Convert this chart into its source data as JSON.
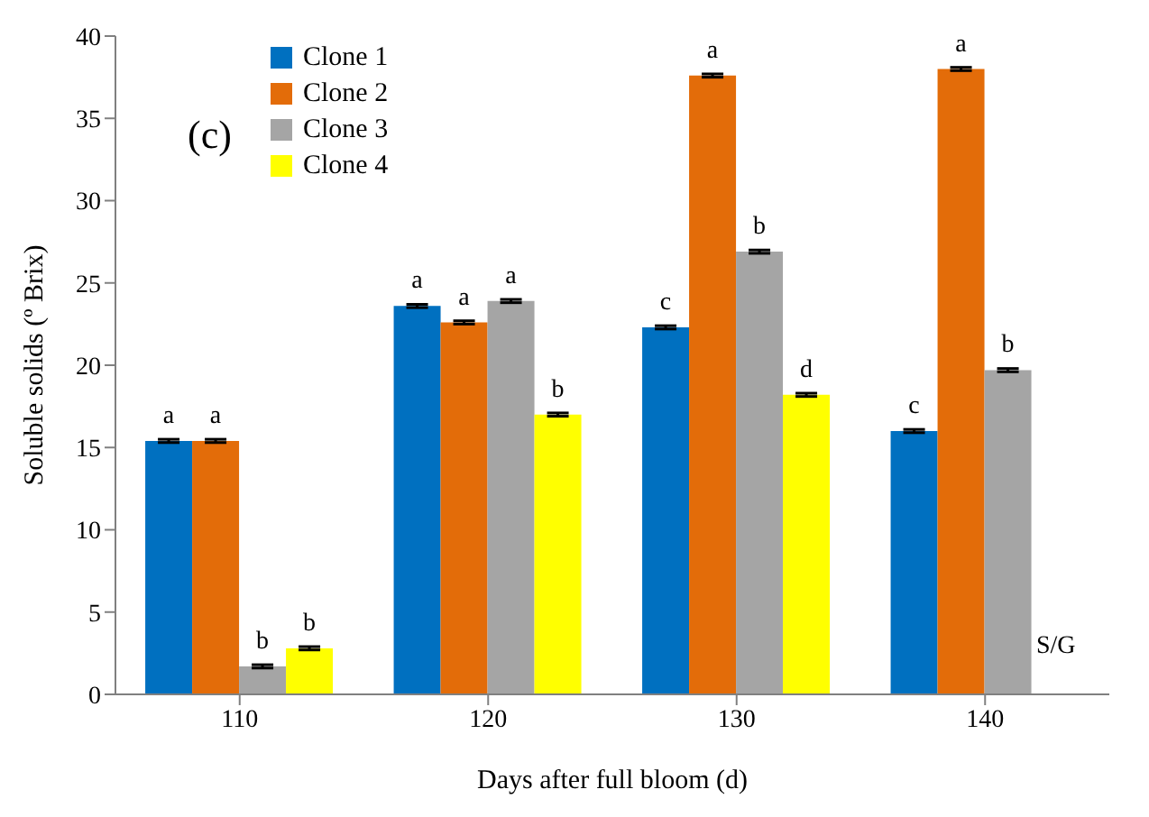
{
  "chart_data": {
    "type": "bar",
    "xlabel": "Days after full bloom (d)",
    "ylabel": "Soluble solids (º Brix)",
    "categories": [
      "110",
      "120",
      "130",
      "140"
    ],
    "series": [
      {
        "name": "Clone 1",
        "color": "#0070c0",
        "values": [
          15.4,
          23.6,
          22.3,
          16.0
        ],
        "errors": [
          0.1,
          0.1,
          0.1,
          0.1
        ],
        "value_labels": [
          "a",
          "a",
          "c",
          "c"
        ]
      },
      {
        "name": "Clone 2",
        "color": "#e36c09",
        "values": [
          15.4,
          22.6,
          37.6,
          38.0
        ],
        "errors": [
          0.1,
          0.1,
          0.1,
          0.1
        ],
        "value_labels": [
          "a",
          "a",
          "a",
          "a"
        ]
      },
      {
        "name": "Clone 3",
        "color": "#a5a5a5",
        "values": [
          1.7,
          23.9,
          26.9,
          19.7
        ],
        "errors": [
          0.1,
          0.1,
          0.1,
          0.1
        ],
        "value_labels": [
          "b",
          "a",
          "b",
          "b"
        ]
      },
      {
        "name": "Clone 4",
        "color": "#ffff00",
        "values": [
          2.8,
          17.0,
          18.2,
          null
        ],
        "errors": [
          0.1,
          0.1,
          0.1,
          null
        ],
        "value_labels": [
          "b",
          "b",
          "d",
          null
        ]
      }
    ],
    "ylim": [
      0,
      40
    ],
    "yticks": [
      0,
      5,
      10,
      15,
      20,
      25,
      30,
      35,
      40
    ],
    "legend": "top left",
    "annotations": [
      "(c)",
      {
        "text": "S/G",
        "x": "140",
        "y": 2.5
      }
    ]
  }
}
